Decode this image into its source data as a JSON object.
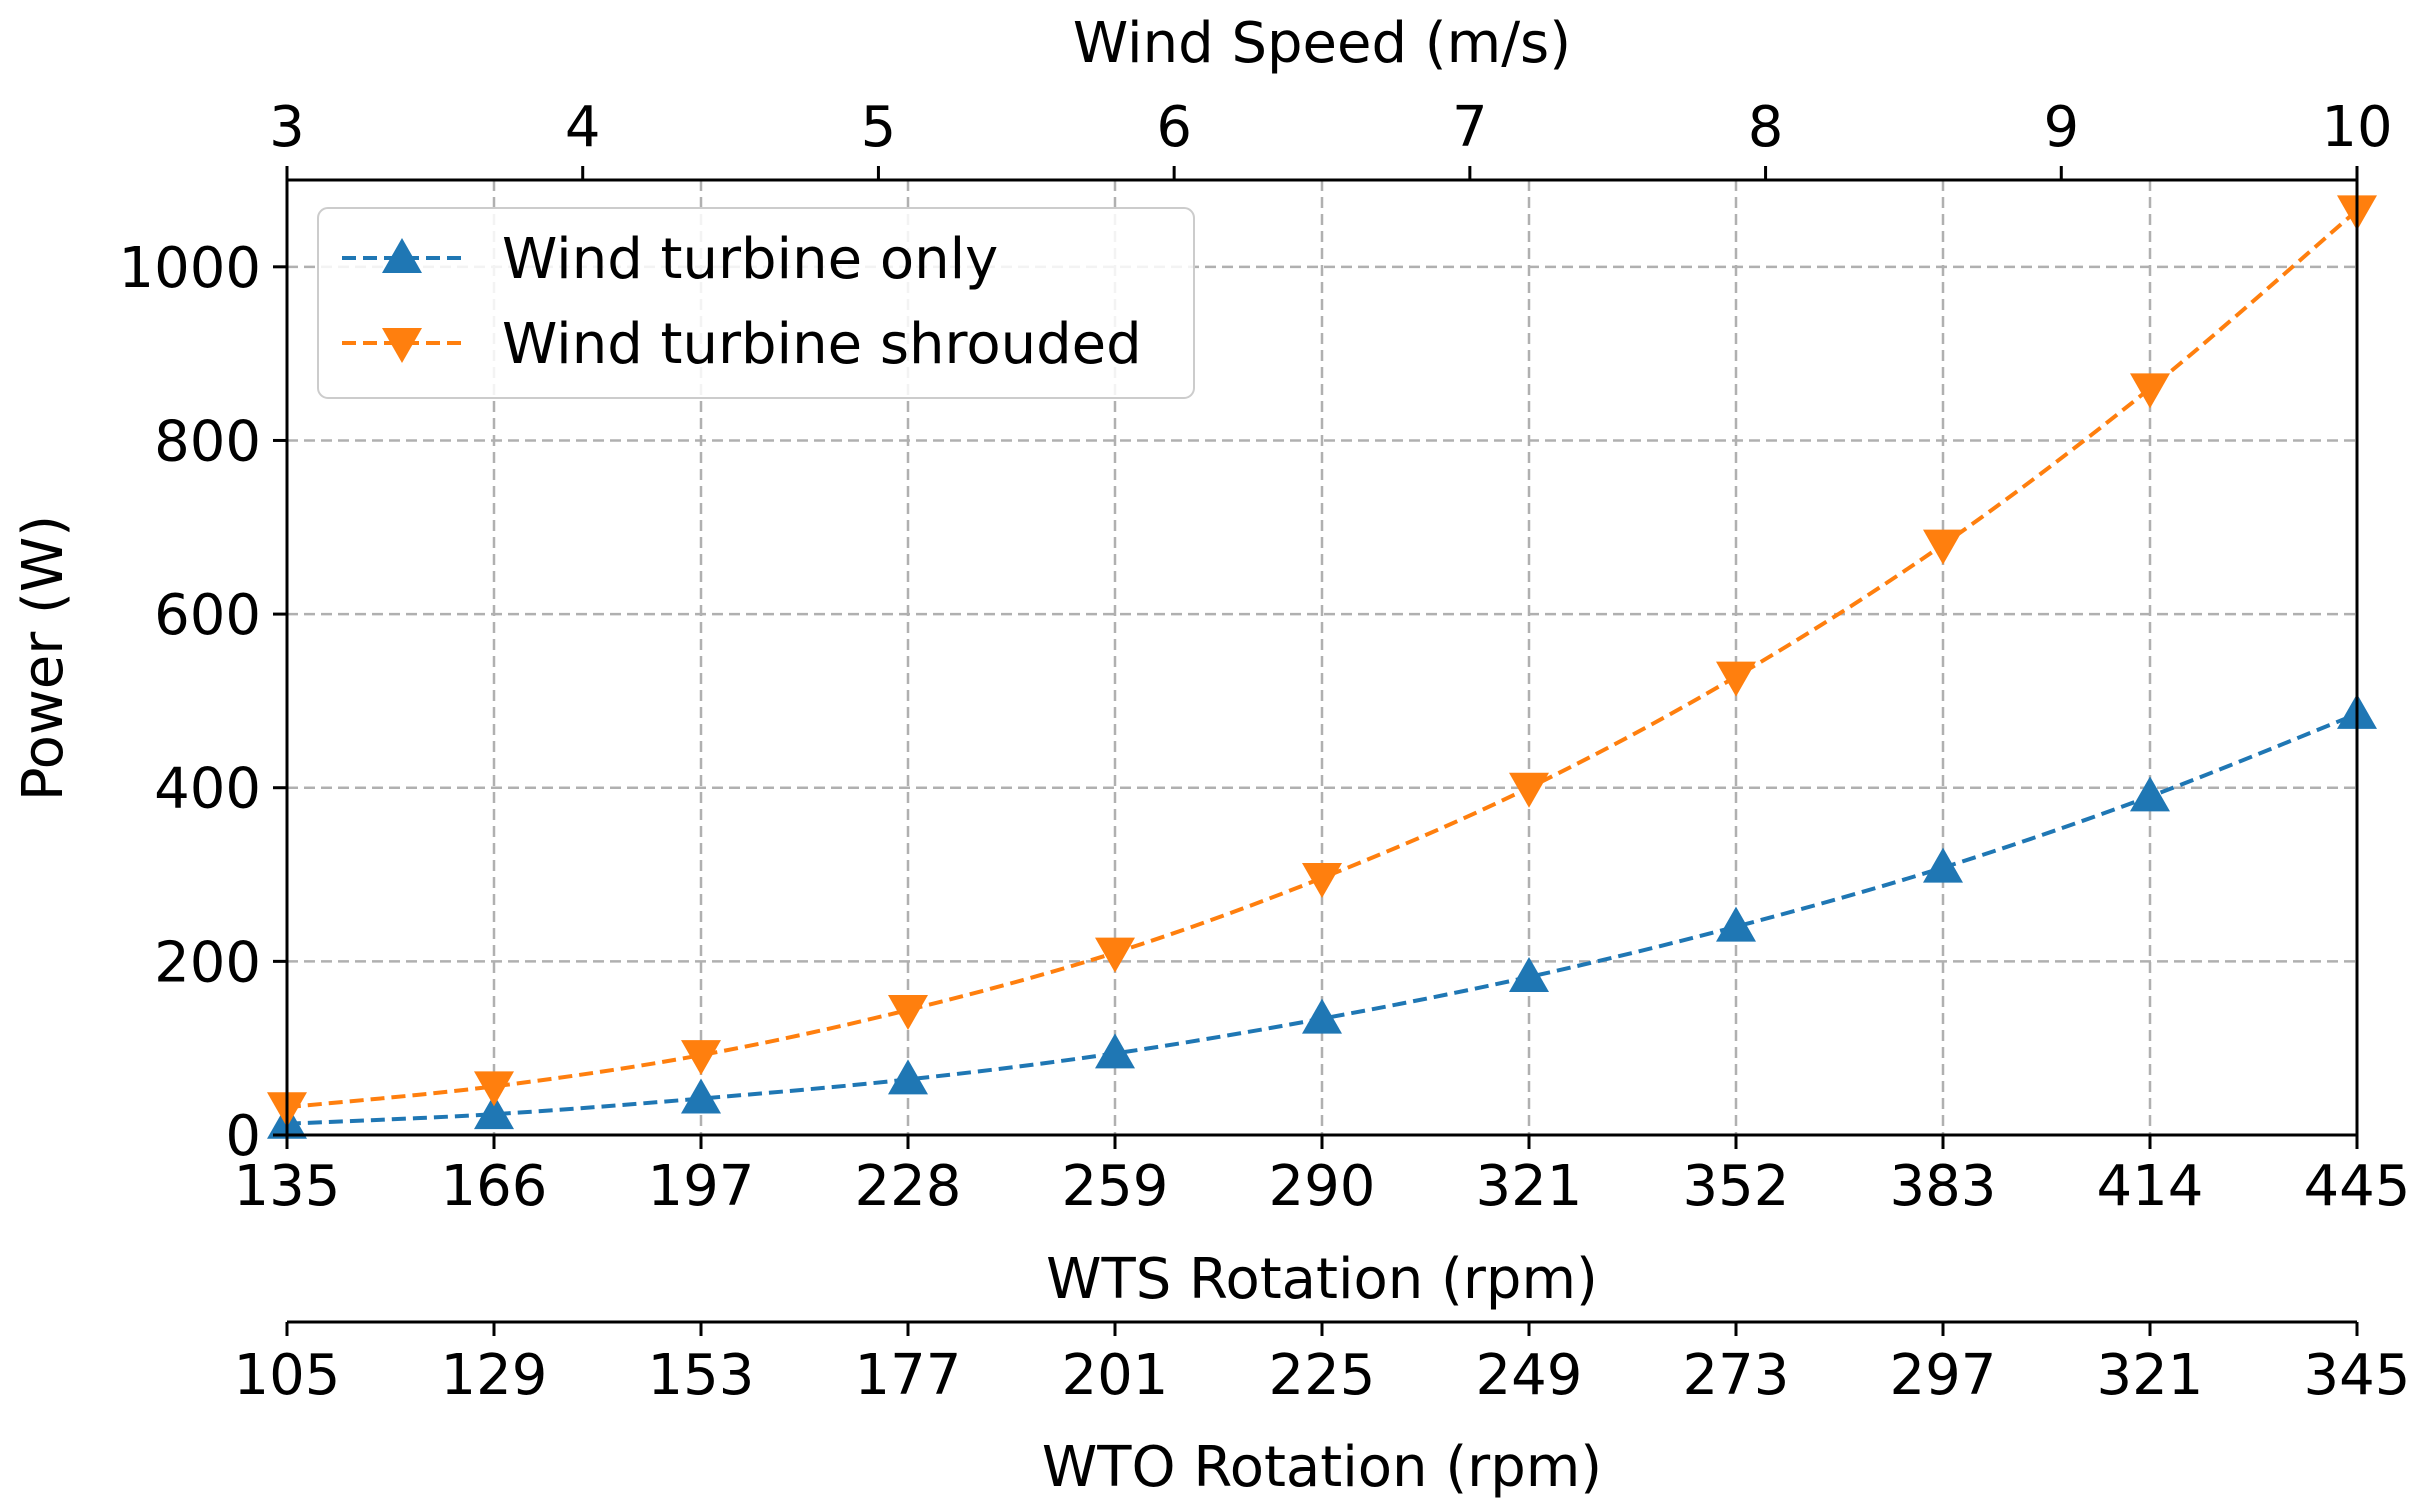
{
  "chart_data": {
    "type": "line",
    "ylabel": "Power (W)",
    "ylim": [
      0,
      1100
    ],
    "yticks": [
      0,
      200,
      400,
      600,
      800,
      1000
    ],
    "top_axis": {
      "label": "Wind Speed (m/s)",
      "lim": [
        3,
        10
      ],
      "ticks": [
        3,
        4,
        5,
        6,
        7,
        8,
        9,
        10
      ]
    },
    "bottom_axis": {
      "label": "WTS Rotation (rpm)",
      "lim": [
        135,
        445
      ],
      "ticks": [
        135,
        166,
        197,
        228,
        259,
        290,
        321,
        352,
        383,
        414,
        445
      ]
    },
    "secondary_bottom_axis": {
      "label": "WTO Rotation (rpm)",
      "tick_labels": [
        105,
        129,
        153,
        177,
        201,
        225,
        249,
        273,
        297,
        321,
        345
      ]
    },
    "x": [
      135,
      166,
      197,
      228,
      259,
      290,
      321,
      352,
      383,
      414,
      445
    ],
    "series": [
      {
        "name": "Wind turbine only",
        "color": "#1f77b4",
        "marker": "triangle-up",
        "linestyle": "dashed",
        "values": [
          13,
          24,
          42,
          64,
          94,
          134,
          182,
          240,
          308,
          390,
          485
        ]
      },
      {
        "name": "Wind turbine shrouded",
        "color": "#ff7f0e",
        "marker": "triangle-down",
        "linestyle": "dashed",
        "values": [
          32,
          56,
          92,
          144,
          210,
          296,
          400,
          528,
          680,
          860,
          1065
        ]
      }
    ],
    "grid": true,
    "legend_position": "top-left"
  }
}
